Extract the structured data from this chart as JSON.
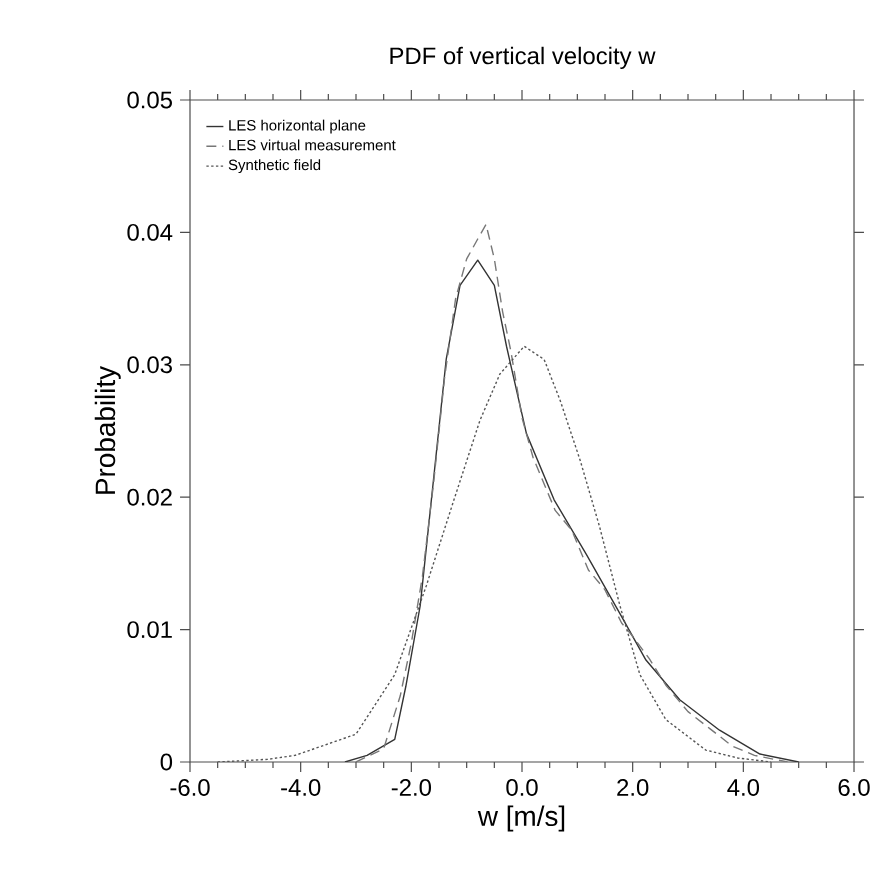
{
  "chart_data": {
    "type": "line",
    "title": "PDF of vertical velocity w",
    "xlabel": "w [m/s]",
    "ylabel": "Probability",
    "xlim": [
      -6,
      6
    ],
    "ylim": [
      0,
      0.05
    ],
    "xticks": [
      {
        "value": -6,
        "label": "-6.0"
      },
      {
        "value": -4,
        "label": "-4.0"
      },
      {
        "value": -2,
        "label": "-2.0"
      },
      {
        "value": 0,
        "label": "0.0"
      },
      {
        "value": 2,
        "label": "2.0"
      },
      {
        "value": 4,
        "label": "4.0"
      },
      {
        "value": 6,
        "label": "6.0"
      }
    ],
    "yticks": [
      0,
      0.01,
      0.02,
      0.03,
      0.04,
      0.05
    ],
    "grid": false,
    "legend": "top left",
    "marker": "none",
    "series": [
      {
        "name": "LES horizontal plane",
        "color": "#333333",
        "line_style": "solid",
        "x": [
          -3.2,
          -2.8,
          -2.3,
          -2.1,
          -1.84,
          -1.6,
          -1.37,
          -1.12,
          -0.8,
          -0.5,
          -0.28,
          0.08,
          0.58,
          1.16,
          1.77,
          2.24,
          2.85,
          3.57,
          4.3,
          5.0
        ],
        "values": [
          0,
          0.0005,
          0.0017,
          0.0057,
          0.0118,
          0.0213,
          0.0304,
          0.036,
          0.0379,
          0.036,
          0.0314,
          0.0248,
          0.0198,
          0.0157,
          0.0112,
          0.0077,
          0.0047,
          0.0024,
          0.0006,
          0
        ]
      },
      {
        "name": "LES virtual measurement",
        "color": "#777777",
        "line_style": "dashed",
        "x": [
          -3.0,
          -2.5,
          -2.2,
          -2.0,
          -1.8,
          -1.6,
          -1.4,
          -1.2,
          -1.0,
          -0.8,
          -0.65,
          -0.5,
          -0.35,
          -0.2,
          0.0,
          0.2,
          0.4,
          0.6,
          0.9,
          1.2,
          1.5,
          1.8,
          2.0,
          2.3,
          2.6,
          3.0,
          3.4,
          3.8,
          4.2,
          4.8
        ],
        "values": [
          0,
          0.001,
          0.005,
          0.009,
          0.014,
          0.021,
          0.029,
          0.035,
          0.038,
          0.0395,
          0.0406,
          0.038,
          0.034,
          0.031,
          0.026,
          0.023,
          0.021,
          0.019,
          0.0175,
          0.0145,
          0.013,
          0.0105,
          0.0095,
          0.0078,
          0.0058,
          0.0038,
          0.0025,
          0.0012,
          0.0005,
          0
        ]
      },
      {
        "name": "Synthetic field",
        "color": "#555555",
        "line_style": "dotted",
        "x": [
          -5.5,
          -4.6,
          -4.1,
          -3.0,
          -2.3,
          -1.73,
          -1.23,
          -0.76,
          -0.4,
          0.04,
          0.4,
          0.69,
          1.05,
          1.4,
          1.77,
          2.13,
          2.6,
          3.32,
          3.9,
          4.5
        ],
        "values": [
          0,
          0.0002,
          0.0005,
          0.0021,
          0.0066,
          0.0133,
          0.0198,
          0.0258,
          0.0293,
          0.0314,
          0.0304,
          0.0273,
          0.0228,
          0.0178,
          0.0118,
          0.0066,
          0.0032,
          0.0009,
          0.0003,
          0
        ]
      }
    ]
  }
}
